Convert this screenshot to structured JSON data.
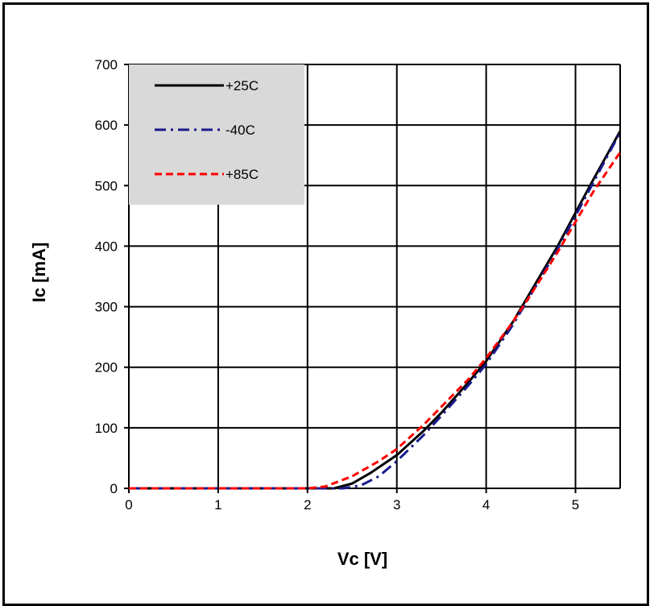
{
  "chart_data": {
    "type": "line",
    "xlabel": "Vc [V]",
    "ylabel": "Ic [mA]",
    "xlim": [
      0,
      5.5
    ],
    "ylim": [
      0,
      700
    ],
    "xticks": [
      "0",
      "1",
      "2",
      "3",
      "4",
      "5"
    ],
    "yticks": [
      "0",
      "100",
      "200",
      "300",
      "400",
      "500",
      "600",
      "700"
    ],
    "grid": true,
    "legend_position": "top-left",
    "series": [
      {
        "name": "+25C",
        "color": "#000000",
        "style": "solid",
        "x": [
          0,
          1,
          2,
          2.3,
          2.5,
          2.7,
          3.0,
          3.3,
          3.5,
          3.8,
          4.0,
          4.3,
          4.5,
          4.8,
          5.0,
          5.2,
          5.5
        ],
        "y": [
          0,
          0,
          0,
          0,
          8,
          25,
          55,
          95,
          125,
          175,
          210,
          275,
          325,
          400,
          455,
          510,
          590
        ]
      },
      {
        "name": "-40C",
        "color": "#1a1a8c",
        "style": "dashdot",
        "x": [
          0,
          1,
          2,
          2.4,
          2.6,
          2.8,
          3.0,
          3.3,
          3.5,
          3.8,
          4.0,
          4.3,
          4.5,
          4.8,
          5.0,
          5.2,
          5.5
        ],
        "y": [
          0,
          0,
          0,
          0,
          5,
          20,
          45,
          88,
          120,
          170,
          205,
          270,
          320,
          395,
          450,
          505,
          588
        ]
      },
      {
        "name": "+85C",
        "color": "#ff0000",
        "style": "dashed",
        "x": [
          0,
          1,
          2,
          2.2,
          2.5,
          2.8,
          3.0,
          3.3,
          3.5,
          3.8,
          4.0,
          4.3,
          4.5,
          4.8,
          5.0,
          5.2,
          5.5
        ],
        "y": [
          0,
          0,
          0,
          3,
          20,
          45,
          65,
          105,
          135,
          180,
          215,
          275,
          320,
          390,
          440,
          490,
          555
        ]
      }
    ]
  }
}
